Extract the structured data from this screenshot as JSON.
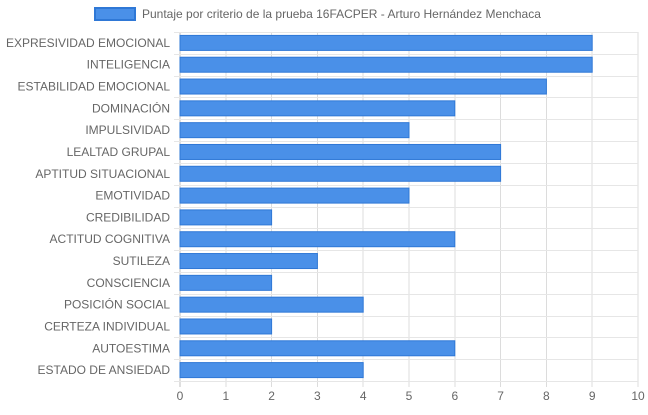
{
  "chart_data": {
    "type": "bar",
    "orientation": "horizontal",
    "categories": [
      "EXPRESIVIDAD EMOCIONAL",
      "INTELIGENCIA",
      "ESTABILIDAD EMOCIONAL",
      "DOMINACIÓN",
      "IMPULSIVIDAD",
      "LEALTAD GRUPAL",
      "APTITUD SITUACIONAL",
      "EMOTIVIDAD",
      "CREDIBILIDAD",
      "ACTITUD COGNITIVA",
      "SUTILEZA",
      "CONSCIENCIA",
      "POSICIÓN SOCIAL",
      "CERTEZA INDIVIDUAL",
      "AUTOESTIMA",
      "ESTADO DE ANSIEDAD"
    ],
    "series": [
      {
        "name": "Puntaje por criterio de la prueba 16FACPER - Arturo Hernández Menchaca",
        "values": [
          9,
          9,
          8,
          6,
          5,
          7,
          7,
          5,
          2,
          6,
          3,
          2,
          4,
          2,
          6,
          4
        ],
        "color": "#4a90e8",
        "border_color": "#2f78d6"
      }
    ],
    "xlim": [
      0,
      10
    ],
    "x_ticks": [
      "0",
      "1",
      "2",
      "3",
      "4",
      "5",
      "6",
      "7",
      "8",
      "9",
      "10"
    ],
    "grid": true,
    "legend_position": "top-center",
    "title": "",
    "xlabel": "",
    "ylabel": ""
  }
}
